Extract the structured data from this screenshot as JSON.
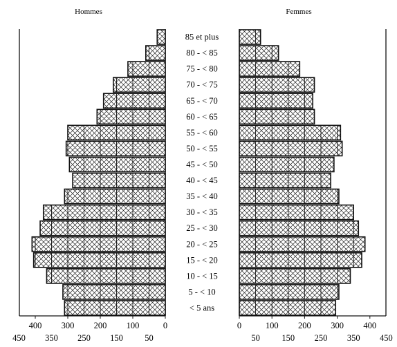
{
  "chart_data": {
    "type": "bar",
    "subtype": "population-pyramid",
    "title": "",
    "panel_labels": {
      "left": "Hommes",
      "right": "Femmes"
    },
    "categories": [
      "< 5 ans",
      "5 - < 10",
      "10 - < 15",
      "15 - < 20",
      "20 - < 25",
      "25 - < 30",
      "30 - < 35",
      "35 - < 40",
      "40 - < 45",
      "45 - < 50",
      "50 - < 55",
      "55 - < 60",
      "60 - < 65",
      "65 - < 70",
      "70 - < 75",
      "75 - < 80",
      "80 - < 85",
      "85 et plus"
    ],
    "series": [
      {
        "name": "Hommes",
        "values": [
          310,
          315,
          365,
          405,
          410,
          385,
          375,
          310,
          285,
          295,
          305,
          300,
          210,
          190,
          160,
          115,
          60,
          25
        ]
      },
      {
        "name": "Femmes",
        "values": [
          295,
          305,
          340,
          375,
          385,
          365,
          350,
          305,
          280,
          290,
          315,
          310,
          230,
          225,
          230,
          185,
          120,
          65
        ]
      }
    ],
    "xlim": [
      0,
      450
    ],
    "x_ticks_major": [
      "0",
      "100",
      "200",
      "300",
      "400"
    ],
    "x_ticks_minor": [
      "50",
      "150",
      "250",
      "350",
      "450"
    ],
    "grid_step": 50,
    "pattern": "cross-hatch",
    "colors": {
      "bar_fill": "#ffffff",
      "hatch": "#222222",
      "outline": "#111111"
    }
  }
}
